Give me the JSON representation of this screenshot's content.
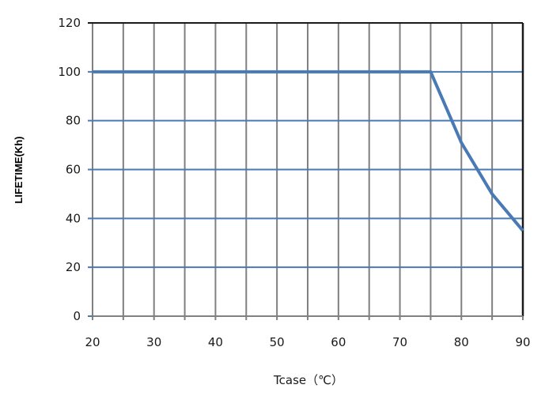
{
  "chart_data": {
    "type": "line",
    "xlabel": "Tcase（℃）",
    "ylabel": "LIFETIME(Kh)",
    "xlim": [
      20,
      90
    ],
    "ylim": [
      0,
      120
    ],
    "xticks": [
      20,
      30,
      40,
      50,
      60,
      70,
      80,
      90
    ],
    "yticks": [
      0,
      20,
      40,
      60,
      80,
      100,
      120
    ],
    "x_minor_grid_step": 5,
    "grid": true,
    "series": [
      {
        "x": [
          20,
          75,
          80,
          85,
          90
        ],
        "y": [
          100,
          100,
          71,
          50,
          35
        ],
        "color": "#4a7ab5"
      }
    ],
    "colors": {
      "hgrid": "#4a7ab5",
      "vgrid": "#808080",
      "frame": "#1a1a1a"
    }
  }
}
